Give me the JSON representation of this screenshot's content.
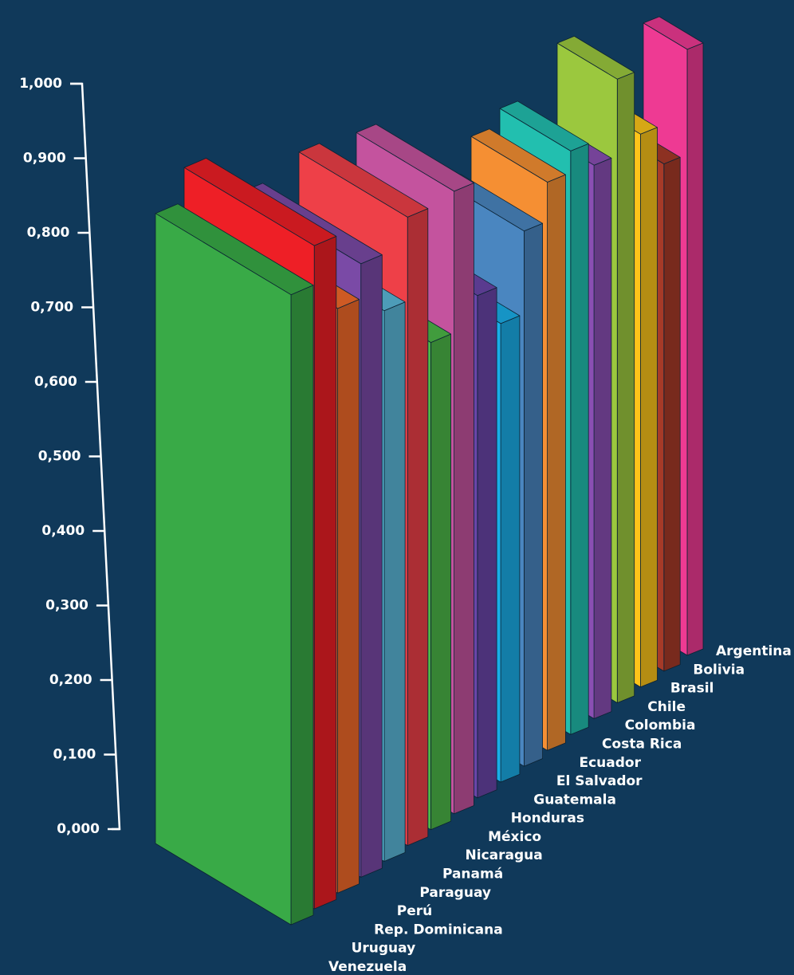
{
  "chart_data": {
    "type": "bar3d",
    "categories": [
      "Argentina",
      "Bolivia",
      "Brasil",
      "Chile",
      "Colombia",
      "Costa Rica",
      "Ecuador",
      "El Salvador",
      "Guatemala",
      "Honduras",
      "México",
      "Nicaragua",
      "Panamá",
      "Paraguay",
      "Perú",
      "Rep. Dominicana",
      "Uruguay",
      "Venezuela"
    ],
    "values": [
      0.797,
      0.663,
      0.718,
      0.805,
      0.71,
      0.744,
      0.72,
      0.674,
      0.574,
      0.625,
      0.77,
      0.599,
      0.768,
      0.669,
      0.741,
      0.702,
      0.792,
      0.748
    ],
    "colors": [
      "#ee3a93",
      "#a63a28",
      "#fcc41a",
      "#9bc83e",
      "#8a4fb3",
      "#22bfaf",
      "#f58f33",
      "#4a86c0",
      "#1aaee8",
      "#6a45a8",
      "#c4539e",
      "#4cb848",
      "#ee4048",
      "#5ab8d8",
      "#7a4aa6",
      "#f26a2a",
      "#ee1f26",
      "#39aa47"
    ],
    "ylim": [
      0,
      1
    ],
    "yticks": [
      {
        "value": 0,
        "label": "0,000"
      },
      {
        "value": 0.1,
        "label": "0,100"
      },
      {
        "value": 0.2,
        "label": "0,200"
      },
      {
        "value": 0.3,
        "label": "0,300"
      },
      {
        "value": 0.4,
        "label": "0,400"
      },
      {
        "value": 0.5,
        "label": "0,500"
      },
      {
        "value": 0.6,
        "label": "0,600"
      },
      {
        "value": 0.7,
        "label": "0,700"
      },
      {
        "value": 0.8,
        "label": "0,800"
      },
      {
        "value": 0.9,
        "label": "0,900"
      },
      {
        "value": 1,
        "label": "1,000"
      }
    ]
  }
}
